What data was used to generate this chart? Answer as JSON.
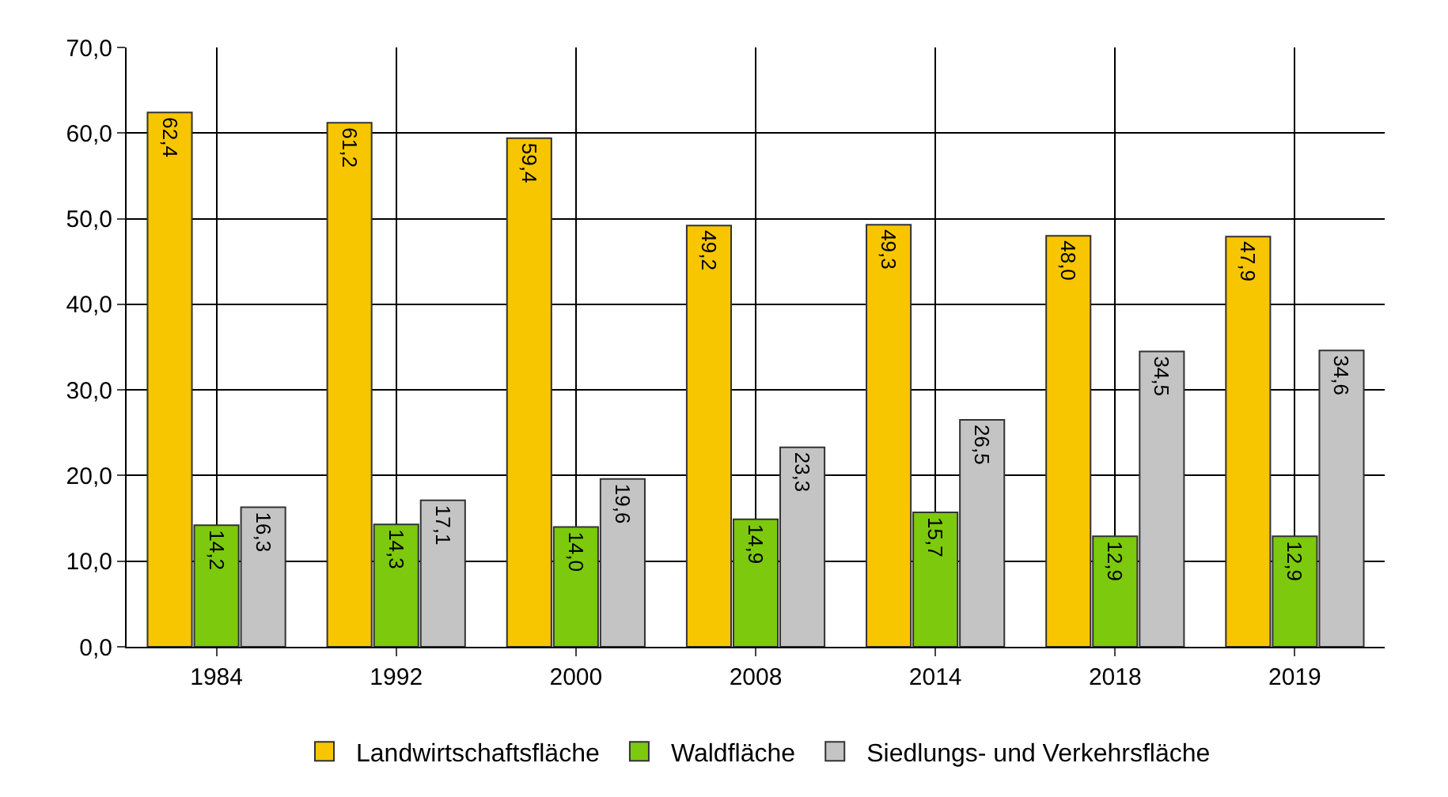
{
  "chart_data": {
    "type": "bar",
    "categories": [
      "1984",
      "1992",
      "2000",
      "2008",
      "2014",
      "2018",
      "2019"
    ],
    "series": [
      {
        "name": "Landwirtschaftsfläche",
        "color": "#f7c600",
        "values": [
          62.4,
          61.2,
          59.4,
          49.2,
          49.3,
          48.0,
          47.9
        ],
        "value_labels": [
          "62,4",
          "61,2",
          "59,4",
          "49,2",
          "49,3",
          "48,0",
          "47,9"
        ]
      },
      {
        "name": "Waldfläche",
        "color": "#7cc90e",
        "values": [
          14.2,
          14.3,
          14.0,
          14.9,
          15.7,
          12.9,
          12.9
        ],
        "value_labels": [
          "14,2",
          "14,3",
          "14,0",
          "14,9",
          "15,7",
          "12,9",
          "12,9"
        ]
      },
      {
        "name": "Siedlungs- und Verkehrsfläche",
        "color": "#c4c4c4",
        "values": [
          16.3,
          17.1,
          19.6,
          23.3,
          26.5,
          34.5,
          34.6
        ],
        "value_labels": [
          "16,3",
          "17,1",
          "19,6",
          "23,3",
          "26,5",
          "34,5",
          "34,6"
        ]
      }
    ],
    "ylim": [
      0,
      70
    ],
    "yticks": [
      {
        "value": 0,
        "label": "0,0"
      },
      {
        "value": 10,
        "label": "10,0"
      },
      {
        "value": 20,
        "label": "20,0"
      },
      {
        "value": 30,
        "label": "30,0"
      },
      {
        "value": 40,
        "label": "40,0"
      },
      {
        "value": 50,
        "label": "50,0"
      },
      {
        "value": 60,
        "label": "60,0"
      },
      {
        "value": 70,
        "label": "70,0"
      }
    ],
    "grid": true,
    "legend": "bottom"
  }
}
